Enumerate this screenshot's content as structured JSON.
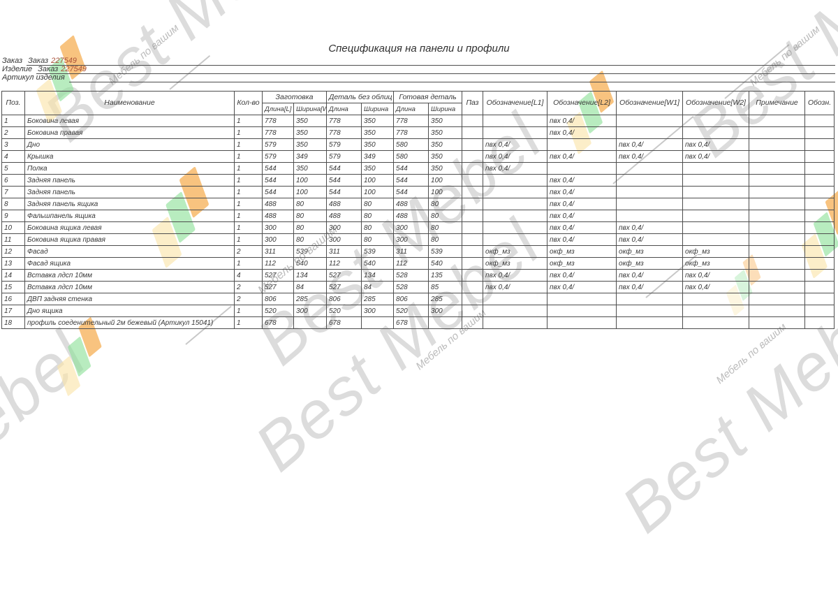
{
  "title": "Спецификация на панели и профили",
  "form": {
    "lines": [
      {
        "label": "Заказ",
        "value_prefix": "Заказ",
        "value_number": "227549"
      },
      {
        "label": "Изделие",
        "value_prefix": "Заказ",
        "value_number": "227549"
      },
      {
        "label": "Артикул изделия",
        "value_prefix": "",
        "value_number": ""
      }
    ]
  },
  "colors": {
    "accent": "#a94f38",
    "border": "#4d4d4d",
    "wm_gray": "#8e8e8e",
    "wm_orange": "#f5a43c",
    "wm_yellow": "#fae3a8",
    "wm_green": "#8ce098"
  },
  "watermark": {
    "big_text": "Best Mebel",
    "small_text": "Мебель по вашим"
  },
  "table": {
    "headers": {
      "pos": "Поз.",
      "name": "Наименование",
      "qty": "Кол-во",
      "zagotovka": "Заготовка",
      "detal": "Деталь без облиц",
      "gotovaya": "Готовая деталь",
      "dlina_l": "Длина[L]",
      "shirina_w": "Ширина[W]",
      "dlina": "Длина",
      "shirina": "Ширина",
      "paz": "Паз",
      "l1": "Обозначение[L1]",
      "l2": "Обозначение[L2]",
      "w1": "Обозначение[W1]",
      "w2": "Обозначение[W2]",
      "note": "Примечание",
      "obozn": "Обозн."
    },
    "rows": [
      [
        "1",
        "Боковина левая",
        "1",
        "778",
        "350",
        "778",
        "350",
        "778",
        "350",
        "",
        "",
        "пвх 0,4/",
        "",
        "",
        "",
        ""
      ],
      [
        "2",
        "Боковина правая",
        "1",
        "778",
        "350",
        "778",
        "350",
        "778",
        "350",
        "",
        "",
        "пвх 0,4/",
        "",
        "",
        "",
        ""
      ],
      [
        "3",
        "Дно",
        "1",
        "579",
        "350",
        "579",
        "350",
        "580",
        "350",
        "",
        "пвх 0,4/",
        "",
        "пвх 0,4/",
        "пвх 0,4/",
        "",
        ""
      ],
      [
        "4",
        "Крышка",
        "1",
        "579",
        "349",
        "579",
        "349",
        "580",
        "350",
        "",
        "пвх 0,4/",
        "пвх 0,4/",
        "пвх 0,4/",
        "пвх 0,4/",
        "",
        ""
      ],
      [
        "5",
        "Полка",
        "1",
        "544",
        "350",
        "544",
        "350",
        "544",
        "350",
        "",
        "пвх 0,4/",
        "",
        "",
        "",
        "",
        ""
      ],
      [
        "6",
        "Задняя панель",
        "1",
        "544",
        "100",
        "544",
        "100",
        "544",
        "100",
        "",
        "",
        "пвх 0,4/",
        "",
        "",
        "",
        ""
      ],
      [
        "7",
        "Задняя панель",
        "1",
        "544",
        "100",
        "544",
        "100",
        "544",
        "100",
        "",
        "",
        "пвх 0,4/",
        "",
        "",
        "",
        ""
      ],
      [
        "8",
        "Задняя панель ящика",
        "1",
        "488",
        "80",
        "488",
        "80",
        "488",
        "80",
        "",
        "",
        "пвх 0,4/",
        "",
        "",
        "",
        ""
      ],
      [
        "9",
        "Фальшпанель ящика",
        "1",
        "488",
        "80",
        "488",
        "80",
        "488",
        "80",
        "",
        "",
        "пвх 0,4/",
        "",
        "",
        "",
        ""
      ],
      [
        "10",
        "Боковина ящика левая",
        "1",
        "300",
        "80",
        "300",
        "80",
        "300",
        "80",
        "",
        "",
        "пвх 0,4/",
        "пвх 0,4/",
        "",
        "",
        ""
      ],
      [
        "11",
        "Боковина ящика правая",
        "1",
        "300",
        "80",
        "300",
        "80",
        "300",
        "80",
        "",
        "",
        "пвх 0,4/",
        "пвх 0,4/",
        "",
        "",
        ""
      ],
      [
        "12",
        "Фасад",
        "2",
        "311",
        "539",
        "311",
        "539",
        "311",
        "539",
        "",
        "окф_мз",
        "окф_мз",
        "окф_мз",
        "окф_мз",
        "",
        ""
      ],
      [
        "13",
        "Фасад ящика",
        "1",
        "112",
        "540",
        "112",
        "540",
        "112",
        "540",
        "",
        "окф_мз",
        "окф_мз",
        "окф_мз",
        "окф_мз",
        "",
        ""
      ],
      [
        "14",
        "Вставка лдсп 10мм",
        "4",
        "527",
        "134",
        "527",
        "134",
        "528",
        "135",
        "",
        "пвх 0,4/",
        "пвх 0,4/",
        "пвх 0,4/",
        "пвх 0,4/",
        "",
        ""
      ],
      [
        "15",
        "Вставка лдсп 10мм",
        "2",
        "527",
        "84",
        "527",
        "84",
        "528",
        "85",
        "",
        "пвх 0,4/",
        "пвх 0,4/",
        "пвх 0,4/",
        "пвх 0,4/",
        "",
        ""
      ],
      [
        "16",
        "ДВП задняя стенка",
        "2",
        "806",
        "285",
        "806",
        "285",
        "806",
        "285",
        "",
        "",
        "",
        "",
        "",
        "",
        ""
      ],
      [
        "17",
        "Дно ящика",
        "1",
        "520",
        "300",
        "520",
        "300",
        "520",
        "300",
        "",
        "",
        "",
        "",
        "",
        "",
        ""
      ],
      [
        "18",
        "профиль соеденительный 2м бежевый (Артикул 15041)",
        "1",
        "678",
        "",
        "678",
        "",
        "678",
        "",
        "",
        "",
        "",
        "",
        "",
        "",
        ""
      ]
    ]
  }
}
